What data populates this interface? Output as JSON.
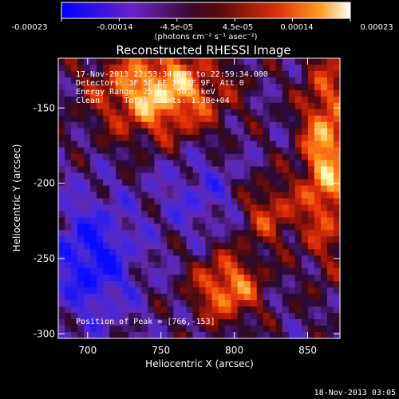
{
  "colorbar": {
    "ticks": [
      "-0.00023",
      "-0.00014",
      "-4.5e-05",
      "4.5e-05",
      "0.00014",
      "0.00023"
    ],
    "unit_label": "(photons cm⁻² s⁻¹ asec⁻²)"
  },
  "colors": {
    "background": "#000000",
    "low": "#1f2bd6",
    "mid_low": "#6a2fb0",
    "mid": "#6a0c3a",
    "high": "#d8300d",
    "peak": "#fff2a0"
  },
  "chart_data": {
    "type": "heatmap",
    "title": "Reconstructed RHESSI Image",
    "xlabel": "Heliocentric X (arcsec)",
    "ylabel": "Heliocentric Y (arcsec)",
    "xlim": [
      680,
      872
    ],
    "ylim": [
      -303,
      -117
    ],
    "x_ticks": [
      700,
      750,
      800,
      850
    ],
    "y_ticks": [
      -150,
      -200,
      -250,
      -300
    ],
    "x_tick_labels": [
      "700",
      "750",
      "800",
      "850"
    ],
    "y_tick_labels": [
      "-150",
      "-200",
      "-250",
      "-300"
    ],
    "peak_position": [
      766,
      -153
    ],
    "info_lines": [
      "17-Nov-2013 22:53:34.000 to 22:59:34.000",
      "Detectors: 3F 5F 6F 7F 8F 9F, Att 0",
      "Energy Range: 25.0 - 50.0 keV",
      "Clean     Total counts: 1.38e+04"
    ],
    "peak_label": "Position of Peak = [766,-153]"
  },
  "footer": "18-Nov-2013 03:05"
}
